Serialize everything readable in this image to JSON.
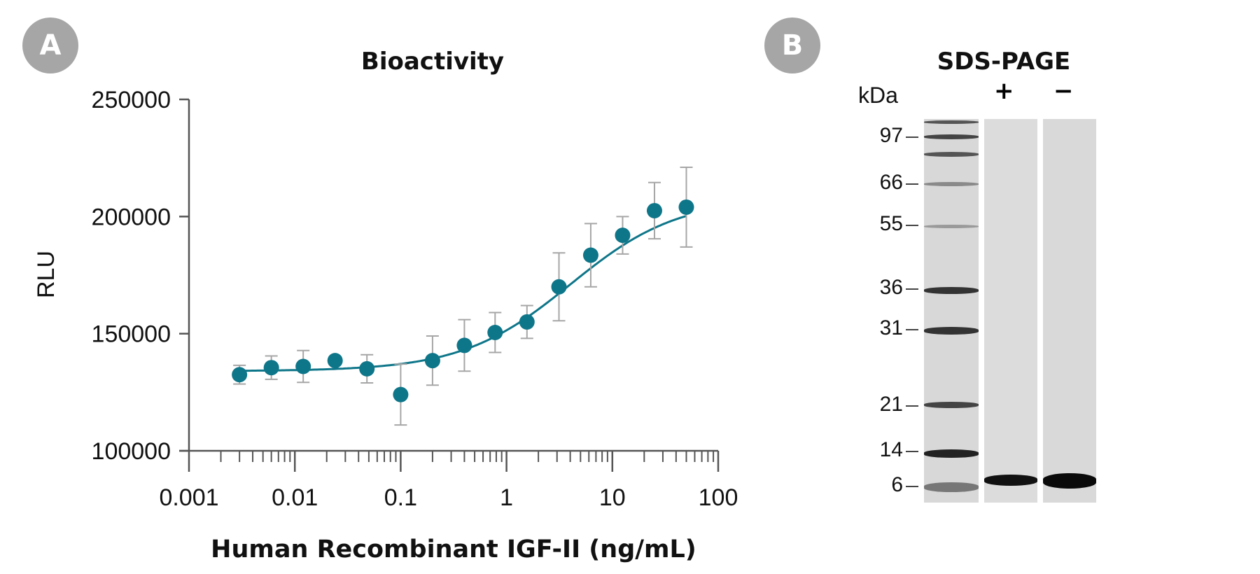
{
  "panel_a": {
    "badge": "A",
    "title": "Bioactivity"
  },
  "panel_b": {
    "badge": "B",
    "title": "SDS-PAGE",
    "kda_label": "kDa",
    "lanes": [
      "+",
      "−"
    ],
    "markers": [
      97,
      66,
      55,
      36,
      31,
      21,
      14,
      6
    ]
  },
  "colors": {
    "accent": "#0e7689",
    "errorbar": "#a6a6a6",
    "axis": "#555555",
    "badge": "#a6a6a6"
  },
  "chart_data": {
    "type": "scatter",
    "title": "Bioactivity",
    "xlabel": "Human Recombinant IGF-II (ng/mL)",
    "ylabel": "RLU",
    "xscale": "log",
    "xlim": [
      0.001,
      100
    ],
    "ylim": [
      100000,
      250000
    ],
    "xticks": [
      0.001,
      0.01,
      0.1,
      1,
      10,
      100
    ],
    "xtick_labels": [
      "0.001",
      "0.01",
      "0.1",
      "1",
      "10",
      "100"
    ],
    "yticks": [
      100000,
      150000,
      200000,
      250000
    ],
    "ytick_labels": [
      "100000",
      "150000",
      "200000",
      "250000"
    ],
    "series": [
      {
        "x": [
          0.003,
          0.006,
          0.012,
          0.024,
          0.048,
          0.1,
          0.2,
          0.4,
          0.78,
          1.56,
          3.13,
          6.25,
          12.5,
          25,
          50
        ],
        "y": [
          132500,
          135500,
          136000,
          138500,
          135000,
          124000,
          138500,
          145000,
          150500,
          155000,
          170000,
          183500,
          192000,
          202500,
          204000
        ],
        "err": [
          4000,
          5000,
          6800,
          0,
          6000,
          13000,
          10500,
          11000,
          8500,
          7000,
          14500,
          13500,
          8000,
          12000,
          17000
        ]
      }
    ],
    "fit": {
      "bottom": 134000,
      "top": 208000,
      "ec50": 4.0,
      "hill": 0.85
    },
    "grid": false,
    "legend": "none"
  }
}
